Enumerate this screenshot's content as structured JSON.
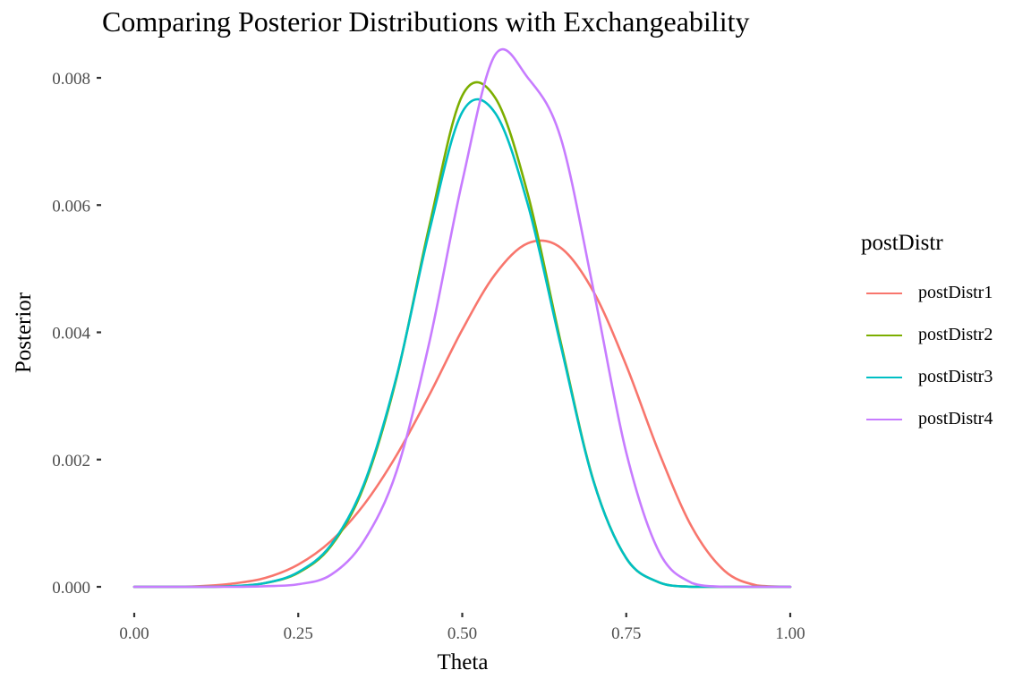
{
  "chart_data": {
    "type": "line",
    "title": "Comparing Posterior Distributions with Exchangeability",
    "xlabel": "Theta",
    "ylabel": "Posterior",
    "xlim": [
      0,
      1
    ],
    "ylim": [
      0,
      0.008
    ],
    "x_ticks": [
      "0.00",
      "0.25",
      "0.50",
      "0.75",
      "1.00"
    ],
    "y_ticks": [
      "0.000",
      "0.002",
      "0.004",
      "0.006",
      "0.008"
    ],
    "grid": false,
    "legend": {
      "title": "postDistr",
      "placement": "right"
    },
    "x": [
      0.0,
      0.05,
      0.1,
      0.15,
      0.2,
      0.25,
      0.3,
      0.35,
      0.4,
      0.45,
      0.5,
      0.55,
      0.6,
      0.65,
      0.7,
      0.75,
      0.8,
      0.85,
      0.9,
      0.95,
      1.0
    ],
    "series": [
      {
        "name": "postDistr1",
        "color": "#F8766D",
        "values": [
          0.0,
          0.0,
          1e-05,
          5e-05,
          0.00014,
          0.00035,
          0.00072,
          0.00129,
          0.00207,
          0.00302,
          0.00404,
          0.00491,
          0.0054,
          0.00533,
          0.00464,
          0.00348,
          0.00211,
          0.00094,
          0.00025,
          2e-05,
          0.0
        ]
      },
      {
        "name": "postDistr2",
        "color": "#7CAE00",
        "values": [
          0.0,
          0.0,
          0.0,
          1e-05,
          6e-05,
          0.00022,
          0.00064,
          0.00158,
          0.00329,
          0.00568,
          0.00772,
          0.00769,
          0.00617,
          0.00385,
          0.00167,
          0.00045,
          7e-05,
          0.0,
          0.0,
          0.0,
          0.0
        ]
      },
      {
        "name": "postDistr3",
        "color": "#00BFC4",
        "values": [
          0.0,
          0.0,
          0.0,
          1e-05,
          6e-05,
          0.00023,
          0.00066,
          0.00161,
          0.00331,
          0.0056,
          0.00746,
          0.00745,
          0.00601,
          0.0038,
          0.00166,
          0.00045,
          7e-05,
          0.0,
          0.0,
          0.0,
          0.0
        ]
      },
      {
        "name": "postDistr4",
        "color": "#C77CFF",
        "values": [
          0.0,
          0.0,
          0.0,
          0.0,
          1e-05,
          4e-05,
          0.00019,
          0.00072,
          0.00182,
          0.00385,
          0.00637,
          0.00836,
          0.008,
          0.00706,
          0.00467,
          0.00211,
          0.00055,
          6e-05,
          0.0,
          0.0,
          0.0
        ]
      }
    ]
  }
}
